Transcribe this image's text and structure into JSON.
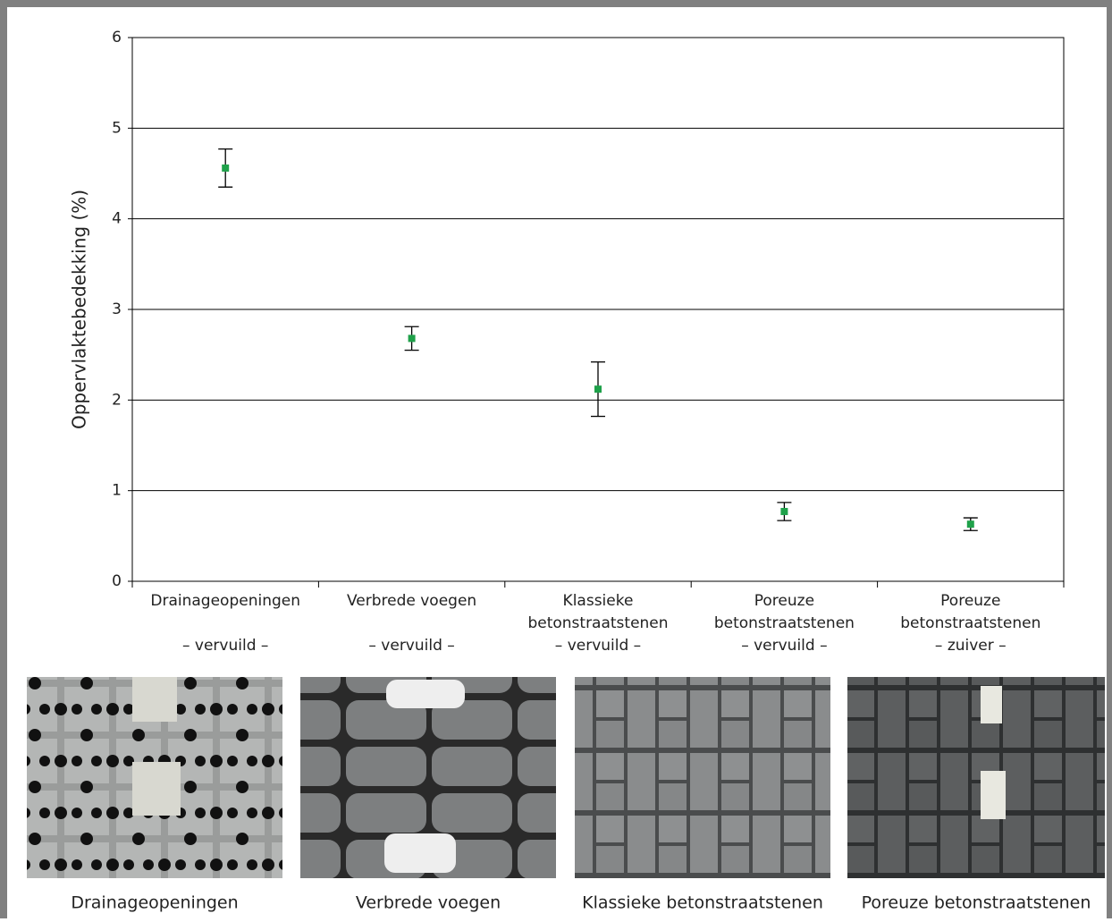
{
  "chart_data": {
    "type": "errorbar",
    "ylabel": "Oppervlaktebedekking (%)",
    "categories": [
      [
        "Drainageopeningen",
        "– vervuild –"
      ],
      [
        "Verbrede voegen",
        "– vervuild –"
      ],
      [
        "Klassieke",
        "betonstraatstenen",
        "– vervuild –"
      ],
      [
        "Poreuze",
        "betonstraatstenen",
        "– vervuild –"
      ],
      [
        "Poreuze",
        "betonstraatstenen",
        "– zuiver –"
      ]
    ],
    "values": [
      4.56,
      2.68,
      2.12,
      0.77,
      0.63
    ],
    "errors": [
      0.21,
      0.13,
      0.3,
      0.1,
      0.07
    ],
    "color": "#1fa14a",
    "ylim": [
      0,
      6
    ],
    "yticks": [
      0,
      1,
      2,
      3,
      4,
      5,
      6
    ],
    "grid": true
  },
  "photos": [
    "Drainageopeningen",
    "Verbrede voegen",
    "Klassieke betonstraatstenen",
    "Poreuze betonstraatstenen"
  ]
}
